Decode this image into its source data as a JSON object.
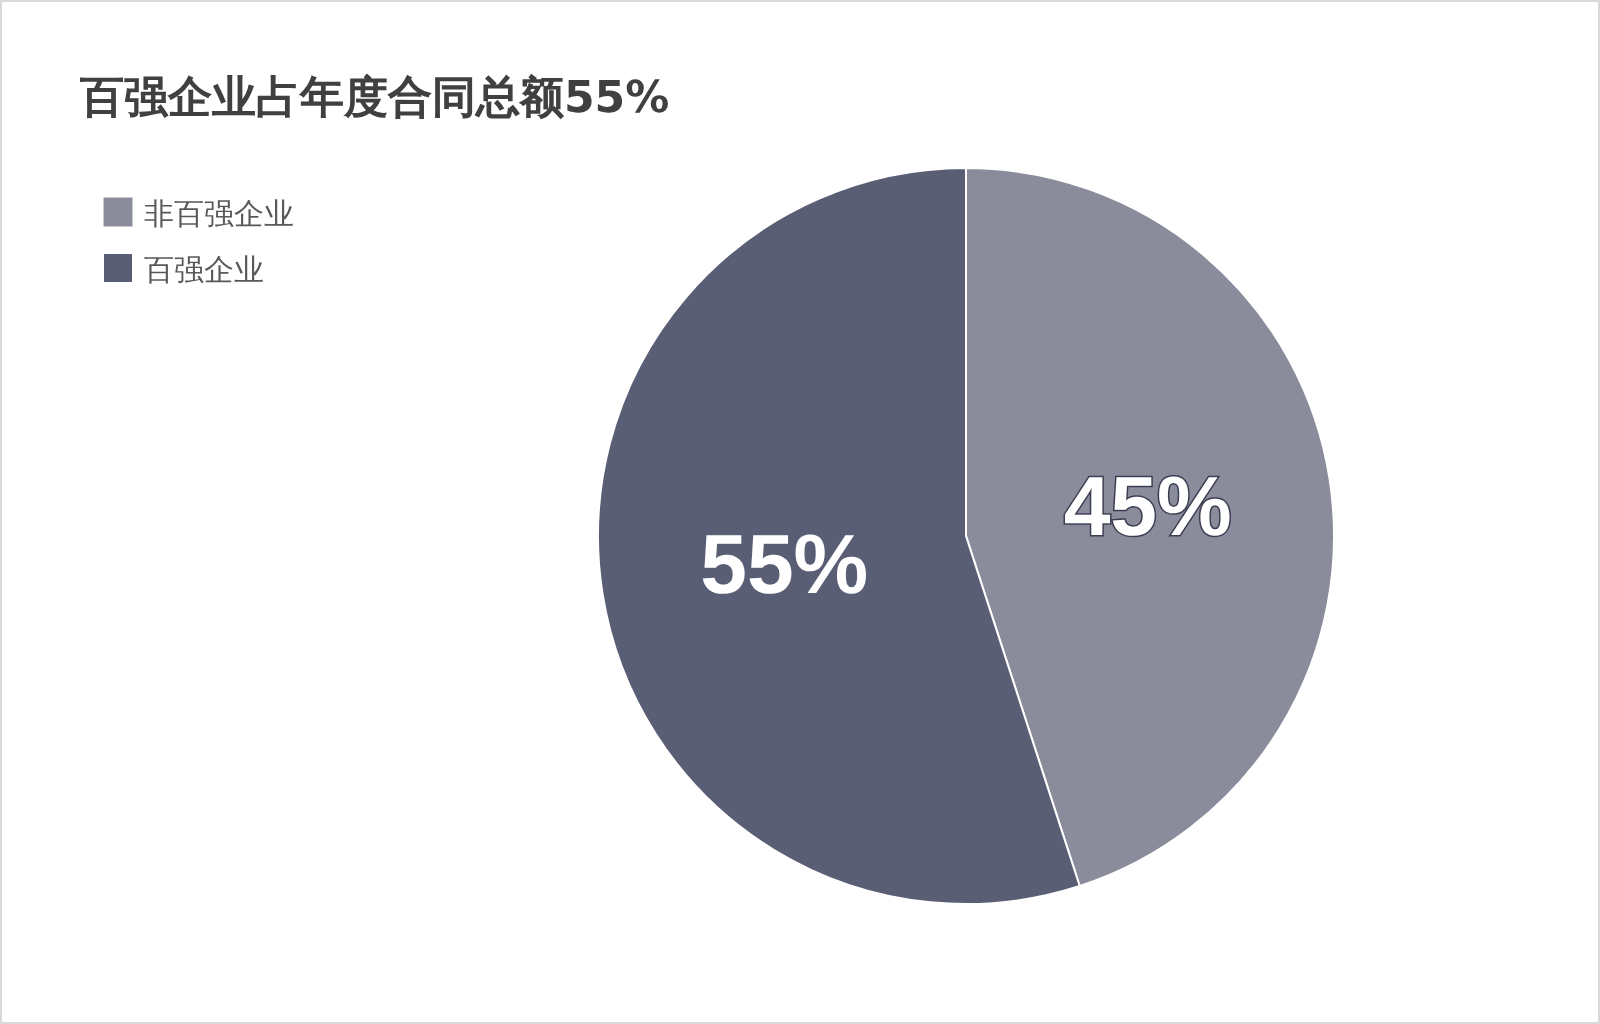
{
  "chart_data": {
    "type": "pie",
    "title": "百强企业占年度合同总额55%",
    "categories": [
      "非百强企业",
      "百强企业"
    ],
    "values": [
      45,
      55
    ],
    "colors": [
      "#8a8c9c",
      "#5a5e75"
    ],
    "value_labels": [
      "45%",
      "55%"
    ],
    "legend": "top left"
  }
}
